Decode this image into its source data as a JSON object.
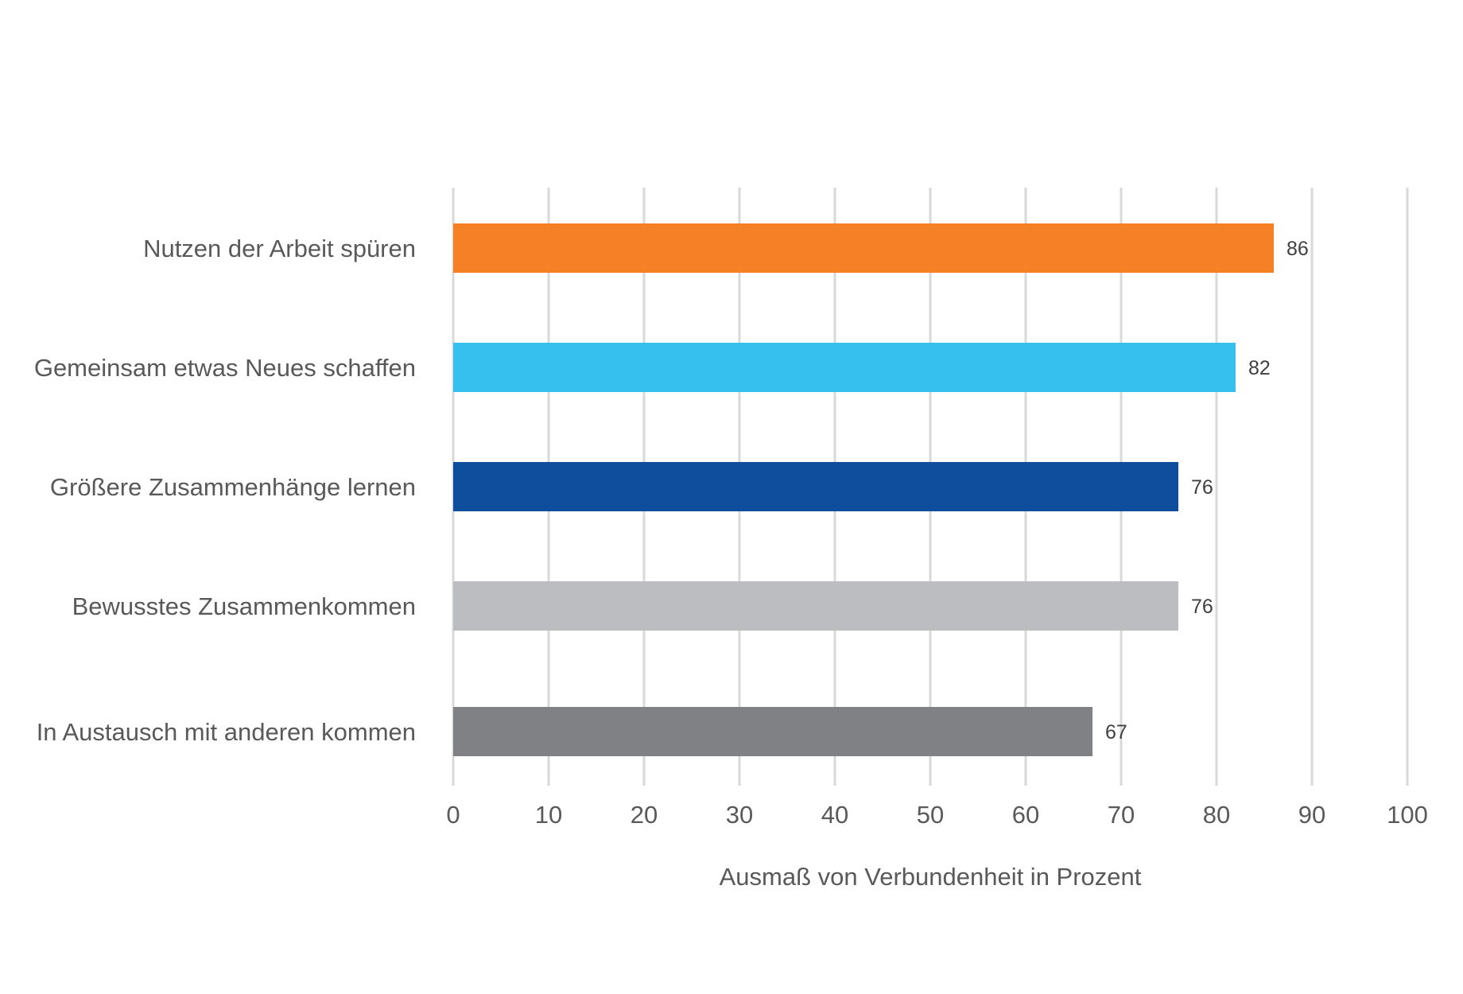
{
  "chart_data": {
    "type": "bar",
    "orientation": "horizontal",
    "categories": [
      "Nutzen der Arbeit spüren",
      "Gemeinsam etwas Neues schaffen",
      "Größere Zusammenhänge lernen",
      "Bewusstes Zusammenkommen",
      "In Austausch mit anderen kommen"
    ],
    "values": [
      86,
      82,
      76,
      76,
      67
    ],
    "bar_colors": [
      "#f58025",
      "#36c0ee",
      "#0f4e9c",
      "#bcbdc0",
      "#808184"
    ],
    "xlabel": "Ausmaß von Verbundenheit in Prozent",
    "ylabel": "",
    "title": "",
    "xlim": [
      0,
      100
    ],
    "xticks": [
      "0",
      "10",
      "20",
      "30",
      "40",
      "50",
      "60",
      "70",
      "80",
      "90",
      "100"
    ],
    "grid": "vertical",
    "legend": "none",
    "data_labels": true
  }
}
